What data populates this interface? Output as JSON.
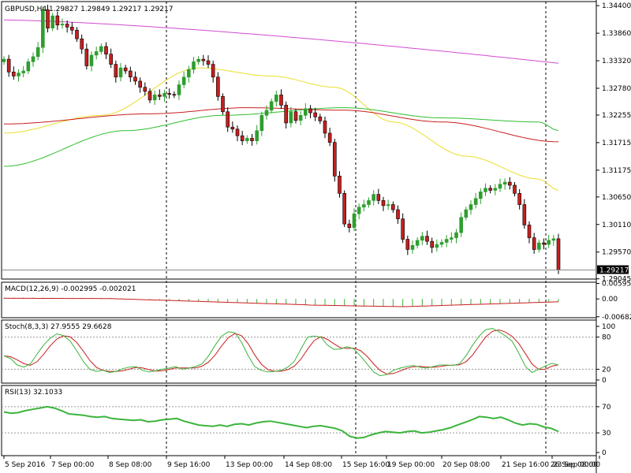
{
  "colors": {
    "background": "#ffffff",
    "grid": "#000000",
    "bull_candle": "#2e9e2e",
    "bear_candle": "#c81e1e",
    "ma_magenta": "#d14bd1",
    "ma_yellow": "#e8df2a",
    "ma_red": "#c81e1e",
    "ma_green": "#2fbf2f",
    "macd_line": "#c81e1e",
    "macd_hist": "#3cb43c",
    "stoch_main": "#3cb43c",
    "stoch_signal": "#c81e1e",
    "rsi_line": "#3cb43c",
    "price_tag_bg": "#000000",
    "price_tag_text": "#ffffff"
  },
  "chart_data": [
    {
      "type": "candlestick",
      "title": "GBPUSD,H4 1.29827 1.29849 1.29217 1.29217",
      "symbol": "GBPUSD",
      "timeframe": "H4",
      "ohlc_last": {
        "open": 1.29827,
        "high": 1.29849,
        "low": 1.29217,
        "close": 1.29217
      },
      "current_price_label": "1.29217",
      "y_ticks": [
        "1.34400",
        "1.33860",
        "1.33320",
        "1.32780",
        "1.32255",
        "1.31715",
        "1.31175",
        "1.30650",
        "1.30110",
        "1.29570",
        "1.29045"
      ],
      "ylim": [
        1.2904,
        1.3448
      ],
      "x_ticks": [
        "5 Sep 2016",
        "7 Sep 00:00",
        "8 Sep 08:00",
        "9 Sep 16:00",
        "13 Sep 00:00",
        "14 Sep 08:00",
        "15 Sep 16:00",
        "19 Sep 00:00",
        "20 Sep 08:00",
        "21 Sep 16:00",
        "23 Sep 00:00",
        "26 Sep 08:00"
      ],
      "vertical_separators_at_ticks": [
        "9 Sep 16:00",
        "19 Sep 00:00",
        "23 Sep 00:00"
      ],
      "closes": [
        1.3335,
        1.331,
        1.3302,
        1.3308,
        1.3312,
        1.333,
        1.334,
        1.3358,
        1.3432,
        1.3396,
        1.342,
        1.3402,
        1.3404,
        1.3398,
        1.3392,
        1.3375,
        1.3355,
        1.3322,
        1.3343,
        1.335,
        1.336,
        1.3345,
        1.3325,
        1.33,
        1.3318,
        1.3312,
        1.33,
        1.3292,
        1.328,
        1.3272,
        1.3255,
        1.3265,
        1.3262,
        1.3268,
        1.3266,
        1.3265,
        1.3285,
        1.33,
        1.3315,
        1.333,
        1.3335,
        1.3332,
        1.3325,
        1.33,
        1.3262,
        1.3232,
        1.3202,
        1.3198,
        1.3185,
        1.3175,
        1.318,
        1.3175,
        1.3195,
        1.3225,
        1.3235,
        1.3252,
        1.3265,
        1.3245,
        1.321,
        1.3232,
        1.3215,
        1.3225,
        1.3238,
        1.323,
        1.3222,
        1.3214,
        1.319,
        1.3172,
        1.3106,
        1.3072,
        1.3012,
        1.3005,
        1.3032,
        1.3045,
        1.305,
        1.3058,
        1.307,
        1.3058,
        1.3048,
        1.305,
        1.304,
        1.3022,
        1.2982,
        1.2962,
        1.297,
        1.298,
        1.2988,
        1.2978,
        1.2966,
        1.2972,
        1.2976,
        1.2982,
        1.2985,
        1.2995,
        1.3025,
        1.304,
        1.305,
        1.3062,
        1.3075,
        1.3082,
        1.3078,
        1.3082,
        1.309,
        1.3094,
        1.3088,
        1.3072,
        1.305,
        1.301,
        1.2985,
        1.2962,
        1.2975,
        1.2972,
        1.298,
        1.2983,
        1.2922
      ],
      "indicators": [
        {
          "name": "MA magenta",
          "values_start": 1.3412,
          "values_end": 1.3327
        },
        {
          "name": "MA yellow",
          "values_peak": 1.3318,
          "values_end": 1.3078
        },
        {
          "name": "MA red",
          "values_start": 1.3208,
          "values_end": 1.3173
        },
        {
          "name": "MA green",
          "values_start": 1.3125,
          "values_end": 1.3195
        }
      ]
    },
    {
      "type": "line",
      "title": "MACD(12,26,9) -0.002995 -0.002021",
      "y_ticks": [
        "0.005952",
        "0.00",
        "-0.006825"
      ],
      "ylim": [
        -0.0072,
        0.0064
      ],
      "histogram_range": [
        -0.0032,
        0.0006
      ],
      "signal_range": [
        -0.0028,
        0.0006
      ]
    },
    {
      "type": "line",
      "title": "Stoch(8,3,3) 27.9555 29.6628",
      "y_ticks": [
        "100",
        "80",
        "20",
        "0"
      ],
      "levels": [
        80,
        20
      ],
      "ylim": [
        0,
        100
      ],
      "main_last": 27.9555,
      "signal_last": 29.6628,
      "main": [
        45,
        40,
        28,
        24,
        30,
        48,
        65,
        78,
        86,
        83,
        73,
        55,
        35,
        20,
        16,
        18,
        14,
        16,
        21,
        24,
        25,
        18,
        15,
        17,
        20,
        22,
        25,
        20,
        22,
        25,
        30,
        45,
        65,
        82,
        90,
        88,
        70,
        45,
        25,
        18,
        15,
        16,
        18,
        24,
        35,
        58,
        80,
        82,
        80,
        65,
        57,
        58,
        62,
        58,
        45,
        30,
        15,
        8,
        10,
        18,
        22,
        25,
        27,
        24,
        22,
        25,
        28,
        28,
        27,
        30,
        45,
        65,
        82,
        94,
        96,
        90,
        82,
        72,
        50,
        25,
        14,
        20,
        26,
        31,
        28
      ]
    },
    {
      "type": "line",
      "title": "RSI(13) 32.1033",
      "y_ticks": [
        "70",
        "30",
        "0"
      ],
      "levels": [
        70,
        30
      ],
      "ylim": [
        0,
        100
      ],
      "last": 32.1033,
      "values": [
        62,
        60,
        61,
        64,
        66,
        68,
        70,
        68,
        64,
        59,
        58,
        57,
        55,
        54,
        55,
        52,
        51,
        50,
        49,
        50,
        47,
        48,
        50,
        51,
        52,
        48,
        45,
        42,
        41,
        40,
        42,
        40,
        43,
        44,
        42,
        45,
        47,
        48,
        46,
        44,
        42,
        40,
        38,
        40,
        41,
        39,
        37,
        33,
        25,
        22,
        23,
        27,
        30,
        32,
        31,
        30,
        32,
        33,
        30,
        31,
        33,
        35,
        38,
        42,
        46,
        50,
        55,
        54,
        52,
        54,
        50,
        45,
        42,
        44,
        43,
        39,
        37,
        32
      ]
    }
  ]
}
